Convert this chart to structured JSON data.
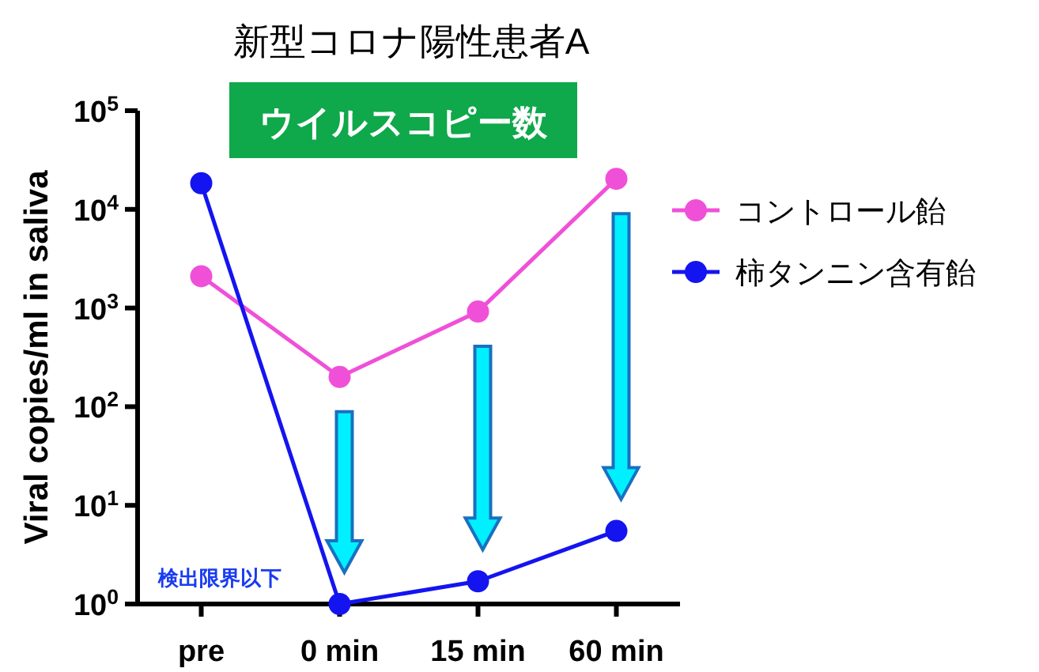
{
  "chart_data": {
    "type": "line",
    "title": "新型コロナ陽性患者A",
    "subtitle": "ウイルスコピー数",
    "ylabel": "Viral copies/ml in saliva",
    "categories": [
      "pre",
      "0 min",
      "15 min",
      "60 min"
    ],
    "series": [
      {
        "name": "コントロール飴",
        "color": "#f050d8",
        "values": [
          2100,
          200,
          920,
          20400
        ]
      },
      {
        "name": "柿タンニン含有飴",
        "color": "#1414f0",
        "values": [
          18400,
          1,
          1.7,
          5.5
        ]
      }
    ],
    "log": true,
    "ylim": [
      1,
      100000
    ],
    "yticks": [
      {
        "value": 1,
        "label": "10$^{0}$"
      },
      {
        "value": 10,
        "label": "10$^{1}$"
      },
      {
        "value": 100,
        "label": "10$^{2}$"
      },
      {
        "value": 1000,
        "label": "10$^{3}$"
      },
      {
        "value": 10000,
        "label": "10$^{4}$"
      },
      {
        "value": 100000,
        "label": "10$^{5}$"
      }
    ],
    "annotations": [
      "検出限界以下"
    ],
    "marker": "circle",
    "line_style": "solid",
    "legend": "right",
    "grid": false
  }
}
